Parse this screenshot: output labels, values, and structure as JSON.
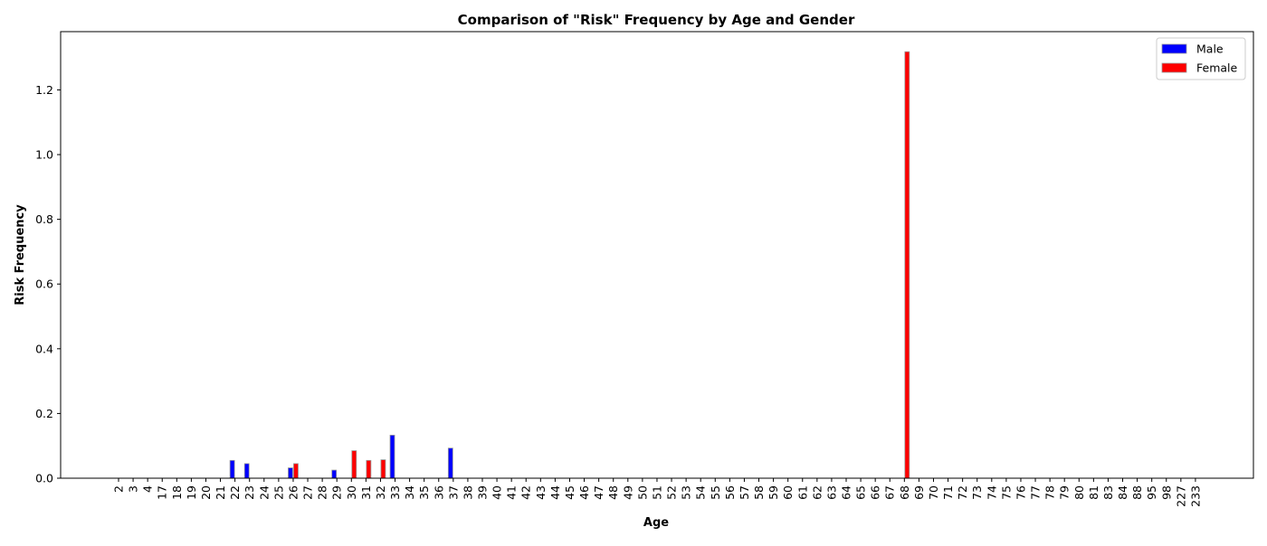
{
  "chart_data": {
    "type": "bar",
    "title": "Comparison of \"Risk\" Frequency by Age and Gender",
    "xlabel": "Age",
    "ylabel": "Risk Frequency",
    "ylim": [
      0,
      1.38
    ],
    "yticks": [
      0.0,
      0.2,
      0.4,
      0.6,
      0.8,
      1.0,
      1.2
    ],
    "ytick_labels": [
      "0.0",
      "0.2",
      "0.4",
      "0.6",
      "0.8",
      "1.0",
      "1.2"
    ],
    "grid": false,
    "legend_position": "top-right",
    "categories": [
      "2",
      "3",
      "4",
      "17",
      "18",
      "19",
      "20",
      "21",
      "22",
      "23",
      "24",
      "25",
      "26",
      "27",
      "28",
      "29",
      "30",
      "31",
      "32",
      "33",
      "34",
      "35",
      "36",
      "37",
      "38",
      "39",
      "40",
      "41",
      "42",
      "43",
      "44",
      "45",
      "46",
      "47",
      "48",
      "49",
      "50",
      "51",
      "52",
      "53",
      "54",
      "55",
      "56",
      "57",
      "58",
      "59",
      "60",
      "61",
      "62",
      "63",
      "64",
      "65",
      "66",
      "67",
      "68",
      "69",
      "70",
      "71",
      "72",
      "73",
      "74",
      "75",
      "76",
      "77",
      "78",
      "79",
      "80",
      "81",
      "83",
      "84",
      "88",
      "95",
      "98",
      "227",
      "233"
    ],
    "series": [
      {
        "name": "Male",
        "color": "#0000ff",
        "values": [
          0,
          0,
          0,
          0,
          0,
          0,
          0,
          0,
          0.055,
          0.045,
          0,
          0,
          0.032,
          0,
          0,
          0.025,
          0,
          0,
          0,
          0.133,
          0,
          0,
          0,
          0.093,
          0,
          0,
          0,
          0,
          0,
          0,
          0,
          0,
          0,
          0,
          0,
          0,
          0,
          0,
          0,
          0,
          0,
          0,
          0,
          0,
          0,
          0,
          0,
          0,
          0,
          0,
          0,
          0,
          0,
          0,
          0,
          0,
          0,
          0,
          0,
          0,
          0,
          0,
          0,
          0,
          0,
          0,
          0,
          0,
          0,
          0,
          0,
          0,
          0,
          0,
          0
        ]
      },
      {
        "name": "Female",
        "color": "#ff0000",
        "values": [
          0,
          0,
          0,
          0,
          0,
          0,
          0,
          0,
          0,
          0,
          0,
          0,
          0.045,
          0,
          0,
          0,
          0.085,
          0.055,
          0.057,
          0,
          0,
          0,
          0,
          0,
          0,
          0,
          0,
          0,
          0,
          0,
          0,
          0,
          0,
          0,
          0,
          0,
          0,
          0,
          0,
          0,
          0,
          0,
          0,
          0,
          0,
          0,
          0,
          0,
          0,
          0,
          0,
          0,
          0,
          0,
          1.318,
          0,
          0,
          0,
          0,
          0,
          0,
          0,
          0,
          0,
          0,
          0,
          0,
          0,
          0,
          0,
          0,
          0,
          0,
          0,
          0
        ]
      }
    ]
  }
}
